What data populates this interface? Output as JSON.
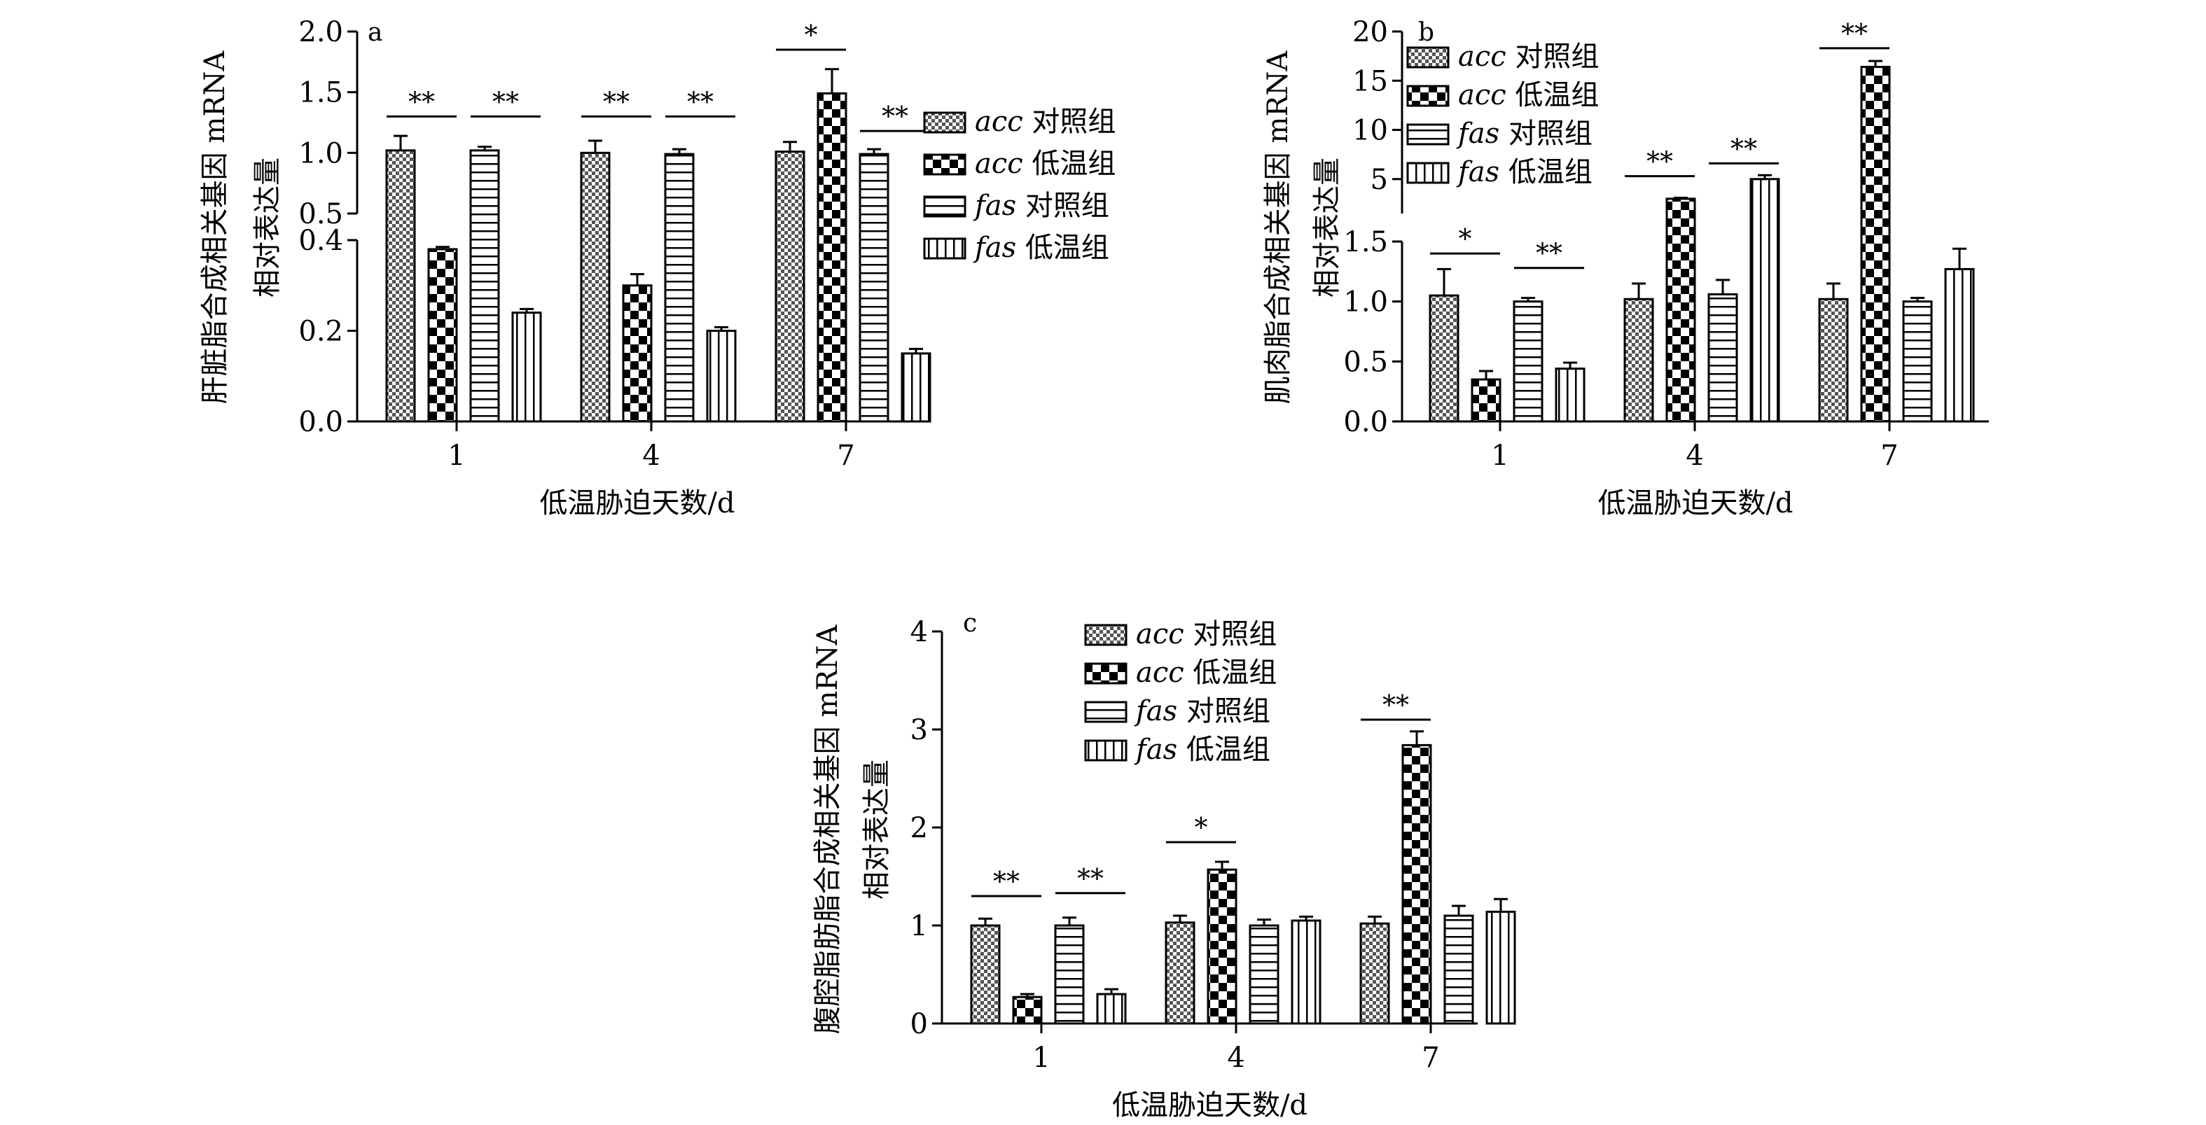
{
  "figure": {
    "legend": {
      "entries": [
        {
          "gene": "acc",
          "group": "对照组"
        },
        {
          "gene": "acc",
          "group": "低温组"
        },
        {
          "gene": "fas",
          "group": "对照组"
        },
        {
          "gene": "fas",
          "group": "低温组"
        }
      ]
    }
  },
  "chart_data": [
    {
      "id": "a",
      "type": "bar",
      "panel_letter": "a",
      "title": "",
      "xlabel": "低温胁迫天数/d",
      "ylabel_lines": [
        "肝脏脂合成相关基因 mRNA",
        "相对表达量"
      ],
      "categories": [
        "1",
        "4",
        "7"
      ],
      "axis_break": true,
      "ylim_lower": [
        0,
        0.4
      ],
      "ylim_upper": [
        0.5,
        2.0
      ],
      "yticks_lower": [
        "0.0",
        "0.2",
        "0.4"
      ],
      "yticks_upper": [
        "0.5",
        "1.0",
        "1.5",
        "2.0"
      ],
      "series": [
        {
          "name": "acc 对照组",
          "pattern": "pat-dots",
          "values": [
            1.02,
            1.0,
            1.01
          ],
          "errors": [
            0.12,
            0.1,
            0.08
          ]
        },
        {
          "name": "acc 低温组",
          "pattern": "pat-check",
          "values": [
            0.38,
            0.3,
            1.49
          ],
          "errors": [
            0.005,
            0.025,
            0.2
          ]
        },
        {
          "name": "fas 对照组",
          "pattern": "pat-hlines",
          "values": [
            1.02,
            0.99,
            0.99
          ],
          "errors": [
            0.03,
            0.04,
            0.04
          ]
        },
        {
          "name": "fas 低温组",
          "pattern": "pat-vlines",
          "values": [
            0.24,
            0.2,
            0.15
          ],
          "errors": [
            0.008,
            0.008,
            0.01
          ]
        }
      ],
      "significance": [
        {
          "category": 0,
          "between": [
            0,
            1
          ],
          "label": "**",
          "level": 1.3
        },
        {
          "category": 0,
          "between": [
            2,
            3
          ],
          "label": "**",
          "level": 1.3
        },
        {
          "category": 1,
          "between": [
            0,
            1
          ],
          "label": "**",
          "level": 1.3
        },
        {
          "category": 1,
          "between": [
            2,
            3
          ],
          "label": "**",
          "level": 1.3
        },
        {
          "category": 2,
          "between": [
            0,
            1
          ],
          "label": "*",
          "level": 1.85
        },
        {
          "category": 2,
          "between": [
            2,
            3
          ],
          "label": "**",
          "level": 1.18
        }
      ]
    },
    {
      "id": "b",
      "type": "bar",
      "panel_letter": "b",
      "title": "",
      "xlabel": "低温胁迫天数/d",
      "ylabel_lines": [
        "肌肉脂合成相关基因 mRNA",
        "相对表达量"
      ],
      "categories": [
        "1",
        "4",
        "7"
      ],
      "axis_break": true,
      "ylim_lower": [
        0,
        1.5
      ],
      "ylim_upper": [
        1.5,
        20
      ],
      "yticks_lower": [
        "0.0",
        "0.5",
        "1.0",
        "1.5"
      ],
      "yticks_upper": [
        "5",
        "10",
        "15",
        "20"
      ],
      "series": [
        {
          "name": "acc 对照组",
          "pattern": "pat-dots",
          "values": [
            1.05,
            1.02,
            1.02
          ],
          "errors": [
            0.22,
            0.13,
            0.13
          ]
        },
        {
          "name": "acc 低温组",
          "pattern": "pat-check",
          "values": [
            0.35,
            3.0,
            16.4
          ],
          "errors": [
            0.07,
            0.1,
            0.6
          ]
        },
        {
          "name": "fas 对照组",
          "pattern": "pat-hlines",
          "values": [
            1.0,
            1.06,
            1.0
          ],
          "errors": [
            0.03,
            0.12,
            0.03
          ]
        },
        {
          "name": "fas 低温组",
          "pattern": "pat-vlines",
          "values": [
            0.44,
            5.0,
            1.27
          ],
          "errors": [
            0.05,
            0.4,
            0.17
          ]
        }
      ],
      "significance": [
        {
          "category": 0,
          "between": [
            0,
            1
          ],
          "label": "*",
          "level": 1.4
        },
        {
          "category": 0,
          "between": [
            2,
            3
          ],
          "label": "**",
          "level": 1.28
        },
        {
          "category": 1,
          "between": [
            0,
            1
          ],
          "label": "**",
          "level": 5.3
        },
        {
          "category": 1,
          "between": [
            2,
            3
          ],
          "label": "**",
          "level": 6.6
        },
        {
          "category": 2,
          "between": [
            0,
            1
          ],
          "label": "**",
          "level": 18.3
        }
      ]
    },
    {
      "id": "c",
      "type": "bar",
      "panel_letter": "c",
      "title": "",
      "xlabel": "低温胁迫天数/d",
      "ylabel_lines": [
        "腹腔脂肪脂合成相关基因 mRNA",
        "相对表达量"
      ],
      "categories": [
        "1",
        "4",
        "7"
      ],
      "axis_break": false,
      "ylim": [
        0,
        4
      ],
      "yticks": [
        "0",
        "1",
        "2",
        "3",
        "4"
      ],
      "series": [
        {
          "name": "acc 对照组",
          "pattern": "pat-dots",
          "values": [
            1.0,
            1.03,
            1.02
          ],
          "errors": [
            0.07,
            0.07,
            0.07
          ]
        },
        {
          "name": "acc 低温组",
          "pattern": "pat-check",
          "values": [
            0.27,
            1.57,
            2.84
          ],
          "errors": [
            0.03,
            0.08,
            0.14
          ]
        },
        {
          "name": "fas 对照组",
          "pattern": "pat-hlines",
          "values": [
            1.0,
            1.0,
            1.1
          ],
          "errors": [
            0.08,
            0.06,
            0.1
          ]
        },
        {
          "name": "fas 低温组",
          "pattern": "pat-vlines",
          "values": [
            0.3,
            1.05,
            1.14
          ],
          "errors": [
            0.05,
            0.04,
            0.13
          ]
        }
      ],
      "significance": [
        {
          "category": 0,
          "between": [
            0,
            1
          ],
          "label": "**",
          "level": 1.3
        },
        {
          "category": 0,
          "between": [
            2,
            3
          ],
          "label": "**",
          "level": 1.33
        },
        {
          "category": 1,
          "between": [
            0,
            1
          ],
          "label": "*",
          "level": 1.85
        },
        {
          "category": 2,
          "between": [
            0,
            1
          ],
          "label": "**",
          "level": 3.1
        }
      ]
    }
  ]
}
